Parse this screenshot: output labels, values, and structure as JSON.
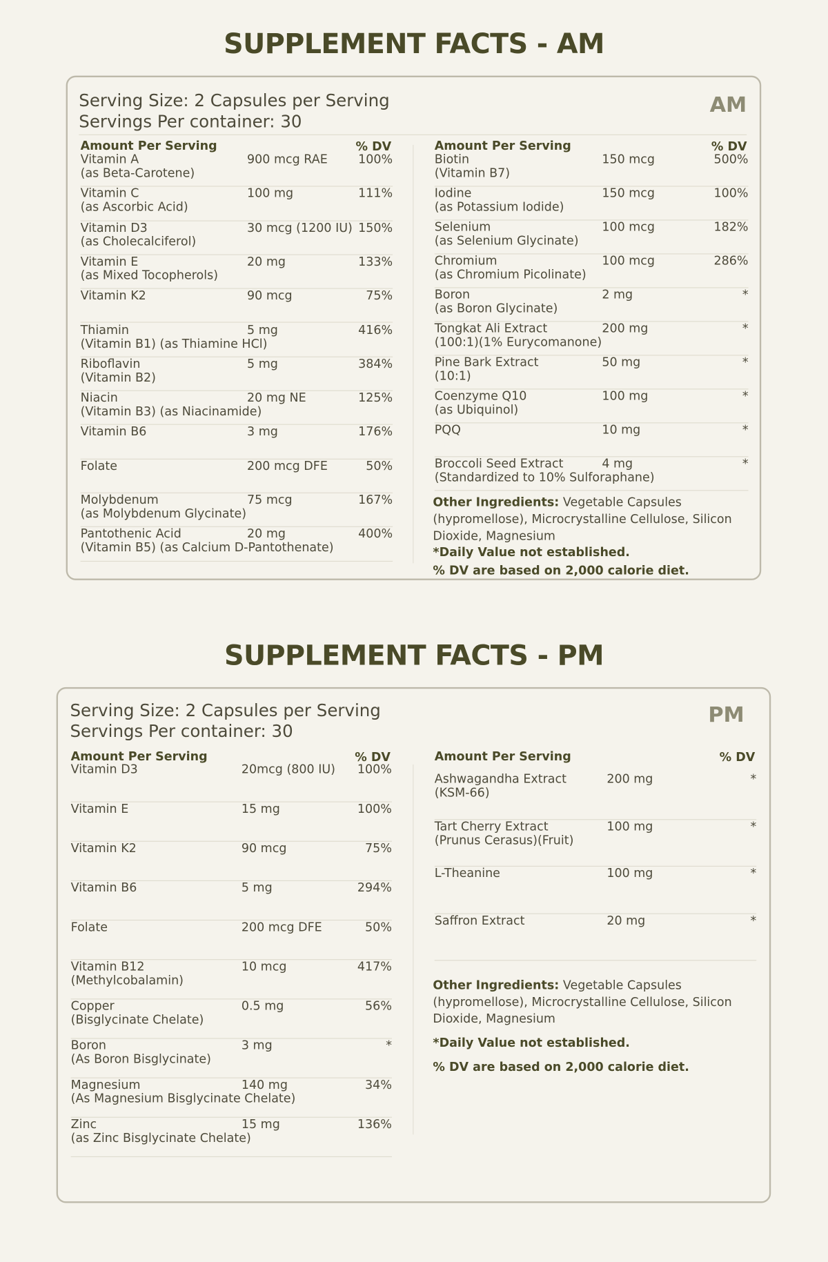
{
  "am": {
    "title": "SUPPLEMENT FACTS - AM",
    "badge": "AM",
    "serving_size": "Serving Size: 2 Capsules per Serving",
    "servings": "Servings Per container: 30",
    "left": {
      "header": "Amount Per Serving",
      "dv_header": "% DV",
      "rows": [
        {
          "name": "Vitamin A",
          "sub": "(as Beta-Carotene)",
          "amount": "900 mcg RAE",
          "dv": "100%"
        },
        {
          "name": "Vitamin C",
          "sub": "(as Ascorbic Acid)",
          "amount": "100 mg",
          "dv": "111%"
        },
        {
          "name": "Vitamin D3",
          "sub": "(as Cholecalciferol)",
          "amount": "30 mcg (1200 IU)",
          "dv": "150%"
        },
        {
          "name": "Vitamin E",
          "sub": "(as Mixed Tocopherols)",
          "amount": "20 mg",
          "dv": "133%"
        },
        {
          "name": "Vitamin K2",
          "amount": "90 mcg",
          "dv": "75%"
        },
        {
          "name": "Thiamin",
          "sub": "(Vitamin B1) (as Thiamine HCl)",
          "amount": "5 mg",
          "dv": "416%"
        },
        {
          "name": "Riboflavin",
          "sub": "(Vitamin B2)",
          "amount": "5 mg",
          "dv": "384%"
        },
        {
          "name": "Niacin",
          "sub": "(Vitamin B3) (as Niacinamide)",
          "amount": "20 mg NE",
          "dv": "125%"
        },
        {
          "name": "Vitamin B6",
          "amount": "3 mg",
          "dv": "176%"
        },
        {
          "name": "Folate",
          "amount": "200 mcg DFE",
          "dv": "50%"
        },
        {
          "name": "Molybdenum",
          "sub": "(as Molybdenum Glycinate)",
          "amount": "75 mcg",
          "dv": "167%"
        },
        {
          "name": "Pantothenic Acid",
          "sub": "(Vitamin B5) (as Calcium D-Pantothenate)",
          "amount": "20 mg",
          "dv": "400%"
        }
      ]
    },
    "right": {
      "header": "Amount Per Serving",
      "dv_header": "% DV",
      "rows": [
        {
          "name": "Biotin",
          "sub": "(Vitamin B7)",
          "amount": "150 mcg",
          "dv": "500%"
        },
        {
          "name": "Iodine",
          "sub": "(as Potassium Iodide)",
          "amount": "150 mcg",
          "dv": "100%"
        },
        {
          "name": "Selenium",
          "sub": "(as Selenium Glycinate)",
          "amount": "100 mcg",
          "dv": "182%"
        },
        {
          "name": "Chromium",
          "sub": "(as Chromium Picolinate)",
          "amount": "100 mcg",
          "dv": "286%"
        },
        {
          "name": "Boron",
          "sub": "(as Boron Glycinate)",
          "amount": "2 mg",
          "dv": "*"
        },
        {
          "name": "Tongkat Ali Extract",
          "sub": "(100:1)(1% Eurycomanone)",
          "amount": "200 mg",
          "dv": "*"
        },
        {
          "name": "Pine Bark Extract",
          "sub": "(10:1)",
          "amount": "50 mg",
          "dv": "*"
        },
        {
          "name": "Coenzyme Q10",
          "sub": "(as Ubiquinol)",
          "amount": "100 mg",
          "dv": "*"
        },
        {
          "name": "PQQ",
          "amount": "10 mg",
          "dv": "*"
        },
        {
          "name": "Broccoli Seed Extract",
          "sub": "(Standardized to 10% Sulforaphane)",
          "amount": "4 mg",
          "dv": "*"
        }
      ]
    },
    "other_label": "Other Ingredients:",
    "other_text": "Vegetable Capsules (hypromellose), Microcrystalline Cellulose, Silicon Dioxide, Magnesium",
    "note_dv": "*Daily Value not established.",
    "note_diet": "% DV are based on 2,000 calorie diet."
  },
  "pm": {
    "title": "SUPPLEMENT FACTS - PM",
    "badge": "PM",
    "serving_size": "Serving Size: 2 Capsules per Serving",
    "servings": "Servings Per container: 30",
    "left": {
      "header": "Amount Per Serving",
      "dv_header": "% DV",
      "rows": [
        {
          "name": "Vitamin D3",
          "amount": "20mcg (800 IU)",
          "dv": "100%"
        },
        {
          "name": "Vitamin E",
          "amount": "15 mg",
          "dv": "100%"
        },
        {
          "name": "Vitamin K2",
          "amount": "90 mcg",
          "dv": "75%"
        },
        {
          "name": "Vitamin B6",
          "amount": "5 mg",
          "dv": "294%"
        },
        {
          "name": "Folate",
          "amount": "200 mcg DFE",
          "dv": "50%"
        },
        {
          "name": "Vitamin B12",
          "sub": "(Methylcobalamin)",
          "amount": "10 mcg",
          "dv": "417%"
        },
        {
          "name": "Copper",
          "sub": "(Bisglycinate Chelate)",
          "amount": "0.5 mg",
          "dv": "56%"
        },
        {
          "name": "Boron",
          "sub": "(As Boron Bisglycinate)",
          "amount": "3 mg",
          "dv": "*"
        },
        {
          "name": "Magnesium",
          "sub": "(As Magnesium Bisglycinate Chelate)",
          "amount": "140 mg",
          "dv": "34%"
        },
        {
          "name": "Zinc",
          "sub": "(as Zinc Bisglycinate Chelate)",
          "amount": "15 mg",
          "dv": "136%"
        }
      ]
    },
    "right": {
      "header": "Amount Per Serving",
      "dv_header": "% DV",
      "rows": [
        {
          "name": "Ashwagandha Extract",
          "sub": "(KSM-66)",
          "amount": "200 mg",
          "dv": "*"
        },
        {
          "name": "Tart Cherry Extract",
          "sub": "(Prunus Cerasus)(Fruit)",
          "amount": "100 mg",
          "dv": "*"
        },
        {
          "name": "L-Theanine",
          "amount": "100 mg",
          "dv": "*"
        },
        {
          "name": "Saffron Extract",
          "amount": "20 mg",
          "dv": "*"
        }
      ]
    },
    "other_label": "Other Ingredients:",
    "other_text": "Vegetable Capsules (hypromellose), Microcrystalline Cellulose, Silicon Dioxide, Magnesium",
    "note_dv": "*Daily Value not established.",
    "note_diet": "% DV are based on 2,000 calorie diet."
  }
}
